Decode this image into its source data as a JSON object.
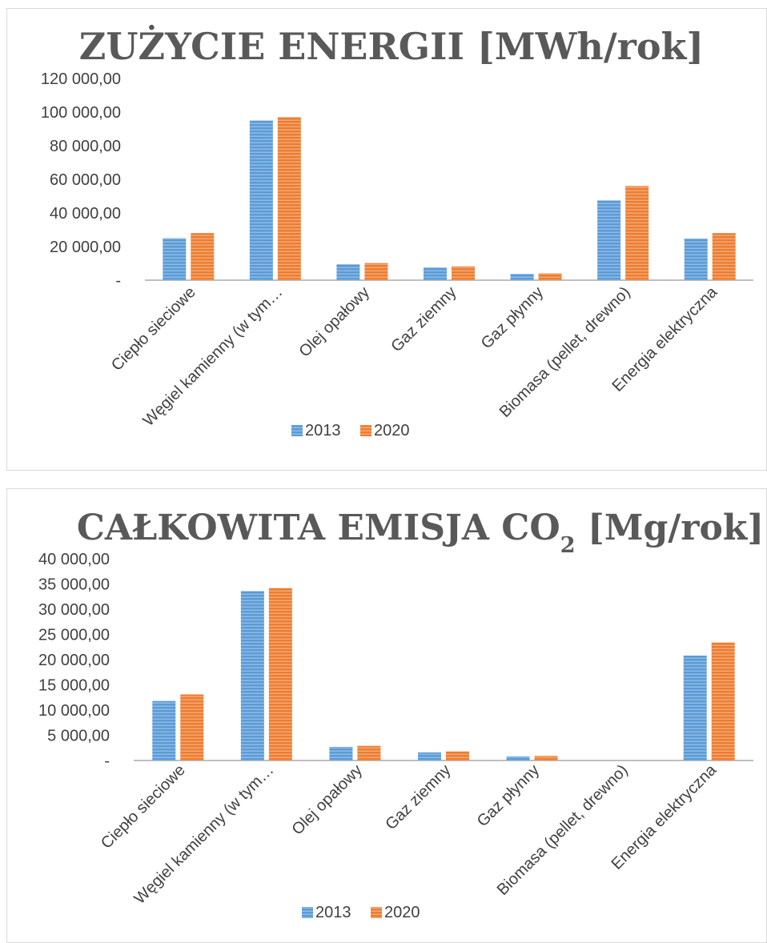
{
  "chart_data": [
    {
      "type": "bar",
      "title": "ZUŻYCIE ENERGII [MWh/rok]",
      "categories": [
        "Ciepło sieciowe",
        "Węgiel kamienny (w tym…",
        "Olej opałowy",
        "Gaz ziemny",
        "Gaz płynny",
        "Biomasa (pellet, drewno)",
        "Energia elektryczna"
      ],
      "series": [
        {
          "name": "2013",
          "values": [
            25000,
            95000,
            9500,
            7600,
            3800,
            47500,
            24800
          ]
        },
        {
          "name": "2020",
          "values": [
            28000,
            97000,
            10200,
            8200,
            4100,
            56000,
            28000
          ]
        }
      ],
      "ylim": [
        0,
        120000
      ],
      "yticks": [
        "-",
        "20 000,00",
        "40 000,00",
        "60 000,00",
        "80 000,00",
        "100 000,00",
        "120 000,00"
      ],
      "grid": false,
      "legend": "bottom"
    },
    {
      "type": "bar",
      "title": "CAŁKOWITA EMISJA CO",
      "title_subscript": "2",
      "title_suffix": " [Mg/rok]",
      "categories": [
        "Ciepło sieciowe",
        "Węgiel kamienny (w tym…",
        "Olej opałowy",
        "Gaz ziemny",
        "Gaz płynny",
        "Biomasa (pellet, drewno)",
        "Energia elektryczna"
      ],
      "series": [
        {
          "name": "2013",
          "values": [
            11800,
            33600,
            2700,
            1600,
            800,
            0,
            20800
          ]
        },
        {
          "name": "2020",
          "values": [
            13100,
            34200,
            2900,
            1800,
            900,
            0,
            23400
          ]
        }
      ],
      "ylim": [
        0,
        40000
      ],
      "yticks": [
        "-",
        "5 000,00",
        "10 000,00",
        "15 000,00",
        "20 000,00",
        "25 000,00",
        "30 000,00",
        "35 000,00",
        "40 000,00"
      ],
      "grid": false,
      "legend": "bottom"
    }
  ],
  "colors": {
    "series_2013": "#5b9bd5",
    "series_2013_stripe": "#8fbbe6",
    "series_2020": "#ed7d31",
    "series_2020_stripe": "#f4a874",
    "axis": "#bfbfbf"
  }
}
